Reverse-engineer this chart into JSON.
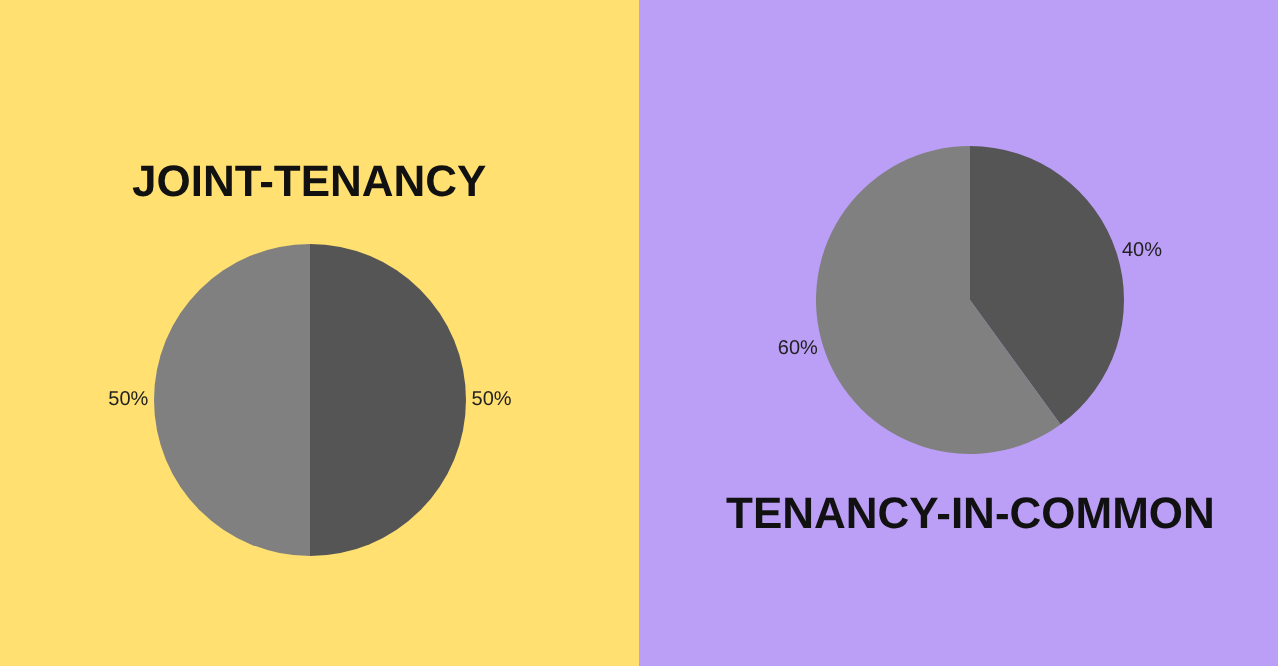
{
  "chart_data": [
    {
      "type": "pie",
      "title": "JOINT-TENANCY",
      "categories": [
        null,
        null
      ],
      "values": [
        50,
        50
      ],
      "colors": [
        "#555555",
        "#808080"
      ],
      "value_labels": [
        "50%",
        "50%"
      ]
    },
    {
      "type": "pie",
      "title": "TENANCY-IN-COMMON",
      "categories": [
        null,
        null
      ],
      "values": [
        40,
        60
      ],
      "colors": [
        "#555555",
        "#808080"
      ],
      "value_labels": [
        "40%",
        "60%"
      ]
    }
  ]
}
